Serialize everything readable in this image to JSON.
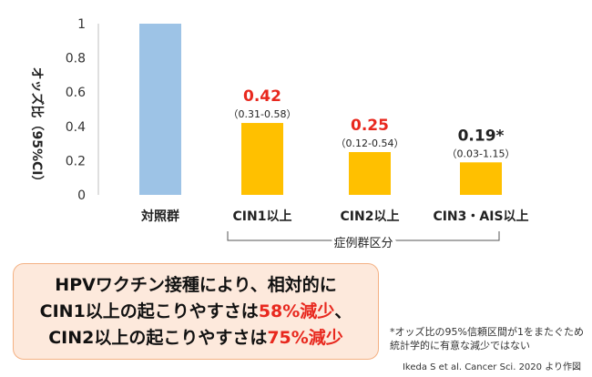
{
  "chart_data": {
    "type": "bar",
    "categories": [
      "対照群",
      "CIN1以上",
      "CIN2以上",
      "CIN3・AIS以上"
    ],
    "values": [
      1,
      0.42,
      0.25,
      0.19
    ],
    "value_labels": [
      "",
      "0.42",
      "0.25",
      "0.19*"
    ],
    "ci_labels": [
      "",
      "（0.31-0.58）",
      "（0.12-0.54）",
      "（0.03-1.15）"
    ],
    "bar_colors": [
      "#9dc3e6",
      "#ffc000",
      "#ffc000",
      "#ffc000"
    ],
    "label_colors": [
      "#e8281e",
      "#e8281e",
      "#e8281e",
      "#222222"
    ],
    "ylabel": "オッズ比（95%CI）",
    "ylim": [
      0,
      1
    ],
    "yticks": [
      0,
      0.2,
      0.4,
      0.6,
      0.8,
      1
    ],
    "ytick_labels": [
      "0",
      "0.2",
      "0.4",
      "0.6",
      "0.8",
      "1"
    ],
    "group_label": "症例群区分",
    "grid": false
  },
  "summary": {
    "line1": "HPVワクチン接種により、相対的に",
    "line2_prefix": "CIN1以上の起こりやすさは",
    "line2_highlight": "58%減少",
    "line2_suffix": "、",
    "line3_prefix": "CIN2以上の起こりやすさは",
    "line3_highlight": "75%減少"
  },
  "footnote": {
    "line1": "*オッズ比の95%信頼区間が1をまたぐため",
    "line2": "統計学的に有意な減少ではない"
  },
  "source": "Ikeda S et al. Cancer Sci. 2020 より作図"
}
